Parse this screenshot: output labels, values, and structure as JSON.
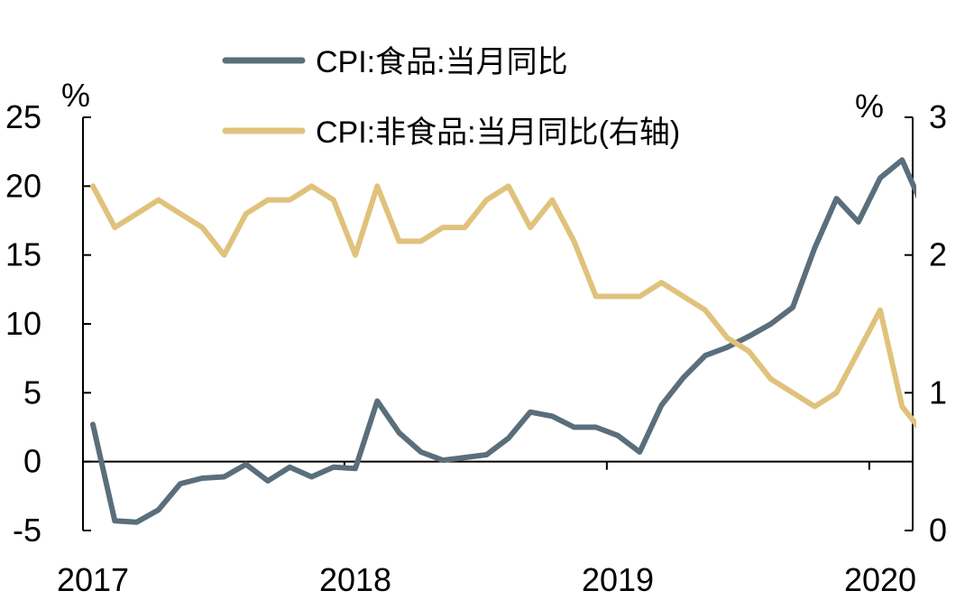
{
  "chart_data": {
    "type": "line",
    "x": [
      "2017-01",
      "2017-02",
      "2017-03",
      "2017-04",
      "2017-05",
      "2017-06",
      "2017-07",
      "2017-08",
      "2017-09",
      "2017-10",
      "2017-11",
      "2017-12",
      "2018-01",
      "2018-02",
      "2018-03",
      "2018-04",
      "2018-05",
      "2018-06",
      "2018-07",
      "2018-08",
      "2018-09",
      "2018-10",
      "2018-11",
      "2018-12",
      "2019-01",
      "2019-02",
      "2019-03",
      "2019-04",
      "2019-05",
      "2019-06",
      "2019-07",
      "2019-08",
      "2019-09",
      "2019-10",
      "2019-11",
      "2019-12",
      "2020-01",
      "2020-02",
      "2020-03"
    ],
    "x_tick_labels": [
      "2017",
      "2018",
      "2019",
      "2020"
    ],
    "left_axis": {
      "unit": "%",
      "ylim": [
        -5,
        25
      ],
      "ticks": [
        "25",
        "20",
        "15",
        "10",
        "5",
        "0",
        "-5"
      ]
    },
    "right_axis": {
      "unit": "%",
      "ylim": [
        0,
        3
      ],
      "ticks": [
        "3",
        "2",
        "1",
        "0"
      ]
    },
    "series": [
      {
        "name": "CPI:食品:当月同比",
        "axis": "left",
        "color": "#5a6e7b",
        "values": [
          2.7,
          -4.3,
          -4.4,
          -3.5,
          -1.6,
          -1.2,
          -1.1,
          -0.2,
          -1.4,
          -0.4,
          -1.1,
          -0.4,
          -0.5,
          4.4,
          2.1,
          0.7,
          0.1,
          0.3,
          0.5,
          1.7,
          3.6,
          3.3,
          2.5,
          2.5,
          1.9,
          0.7,
          4.1,
          6.1,
          7.7,
          8.3,
          9.1,
          10.0,
          11.2,
          15.5,
          19.1,
          17.4,
          20.6,
          21.9,
          18.3
        ]
      },
      {
        "name": "CPI:非食品:当月同比(右轴)",
        "axis": "right",
        "color": "#e0c27c",
        "values": [
          2.5,
          2.2,
          2.3,
          2.4,
          2.3,
          2.2,
          2.0,
          2.3,
          2.4,
          2.4,
          2.5,
          2.4,
          2.0,
          2.5,
          2.1,
          2.1,
          2.2,
          2.2,
          2.4,
          2.5,
          2.2,
          2.4,
          2.1,
          1.7,
          1.7,
          1.7,
          1.8,
          1.7,
          1.6,
          1.4,
          1.3,
          1.1,
          1.0,
          0.9,
          1.0,
          1.3,
          1.6,
          0.9,
          0.7
        ]
      }
    ]
  },
  "legend": {
    "food_label": "CPI:食品:当月同比",
    "nonfood_label": "CPI:非食品:当月同比(右轴)"
  }
}
